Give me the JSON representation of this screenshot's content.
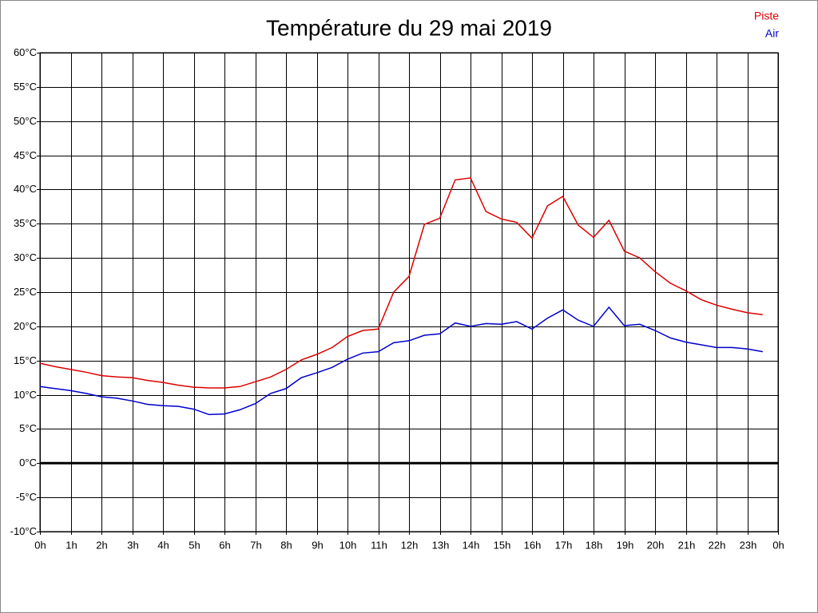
{
  "chart_data": {
    "type": "line",
    "title": "Température du 29 mai 2019",
    "x": [
      0,
      0.5,
      1,
      1.5,
      2,
      2.5,
      3,
      3.5,
      4,
      4.5,
      5,
      5.5,
      6,
      6.5,
      7,
      7.5,
      8,
      8.5,
      9,
      9.5,
      10,
      10.5,
      11,
      11.5,
      12,
      12.5,
      13,
      13.5,
      14,
      14.5,
      15,
      15.5,
      16,
      16.5,
      17,
      17.5,
      18,
      18.5,
      19,
      19.5,
      20,
      20.5,
      21,
      21.5,
      22,
      22.5,
      23,
      23.5
    ],
    "series": [
      {
        "name": "Piste",
        "color": "#dd0000",
        "values": [
          14.6,
          14.1,
          13.7,
          13.3,
          12.8,
          12.6,
          12.5,
          12.1,
          11.8,
          11.4,
          11.1,
          11.0,
          11.0,
          11.2,
          11.9,
          12.6,
          13.7,
          15.1,
          15.9,
          16.9,
          18.5,
          19.4,
          19.6,
          25.0,
          27.3,
          34.9,
          35.8,
          41.4,
          41.7,
          36.8,
          35.7,
          35.2,
          32.9,
          37.6,
          39.0,
          34.8,
          33.0,
          35.5,
          31.0,
          30.0,
          28.0,
          26.3,
          25.2,
          23.9,
          23.1,
          22.5,
          22.0,
          21.7
        ]
      },
      {
        "name": "Air",
        "color": "#0000cc",
        "values": [
          11.2,
          10.9,
          10.6,
          10.2,
          9.7,
          9.5,
          9.1,
          8.6,
          8.4,
          8.3,
          7.9,
          7.1,
          7.2,
          7.8,
          8.7,
          10.2,
          10.9,
          12.5,
          13.2,
          14.0,
          15.2,
          16.1,
          16.3,
          17.6,
          17.9,
          18.7,
          18.9,
          20.5,
          20.0,
          20.4,
          20.3,
          20.7,
          19.6,
          21.2,
          22.4,
          20.9,
          20.0,
          22.8,
          20.1,
          20.3,
          19.4,
          18.3,
          17.7,
          17.3,
          16.9,
          16.9,
          16.7,
          16.3
        ]
      }
    ],
    "xlim": [
      0,
      24
    ],
    "xticks": [
      {
        "value": 0,
        "label": "0h"
      },
      {
        "value": 1,
        "label": "1h"
      },
      {
        "value": 2,
        "label": "2h"
      },
      {
        "value": 3,
        "label": "3h"
      },
      {
        "value": 4,
        "label": "4h"
      },
      {
        "value": 5,
        "label": "5h"
      },
      {
        "value": 6,
        "label": "6h"
      },
      {
        "value": 7,
        "label": "7h"
      },
      {
        "value": 8,
        "label": "8h"
      },
      {
        "value": 9,
        "label": "9h"
      },
      {
        "value": 10,
        "label": "10h"
      },
      {
        "value": 11,
        "label": "11h"
      },
      {
        "value": 12,
        "label": "12h"
      },
      {
        "value": 13,
        "label": "13h"
      },
      {
        "value": 14,
        "label": "14h"
      },
      {
        "value": 15,
        "label": "15h"
      },
      {
        "value": 16,
        "label": "16h"
      },
      {
        "value": 17,
        "label": "17h"
      },
      {
        "value": 18,
        "label": "18h"
      },
      {
        "value": 19,
        "label": "19h"
      },
      {
        "value": 20,
        "label": "20h"
      },
      {
        "value": 21,
        "label": "21h"
      },
      {
        "value": 22,
        "label": "22h"
      },
      {
        "value": 23,
        "label": "23h"
      },
      {
        "value": 24,
        "label": "0h"
      }
    ],
    "ylim": [
      -10,
      60
    ],
    "yticks": [
      {
        "value": -10,
        "label": "-10°C"
      },
      {
        "value": -5,
        "label": "-5°C"
      },
      {
        "value": 0,
        "label": "0°C"
      },
      {
        "value": 5,
        "label": "5°C"
      },
      {
        "value": 10,
        "label": "10°C"
      },
      {
        "value": 15,
        "label": "15°C"
      },
      {
        "value": 20,
        "label": "20°C"
      },
      {
        "value": 25,
        "label": "25°C"
      },
      {
        "value": 30,
        "label": "30°C"
      },
      {
        "value": 35,
        "label": "35°C"
      },
      {
        "value": 40,
        "label": "40°C"
      },
      {
        "value": 45,
        "label": "45°C"
      },
      {
        "value": 50,
        "label": "50°C"
      },
      {
        "value": 55,
        "label": "55°C"
      },
      {
        "value": 60,
        "label": "60°C"
      }
    ],
    "grid": true,
    "zero_line": true,
    "legend": "top-right"
  }
}
